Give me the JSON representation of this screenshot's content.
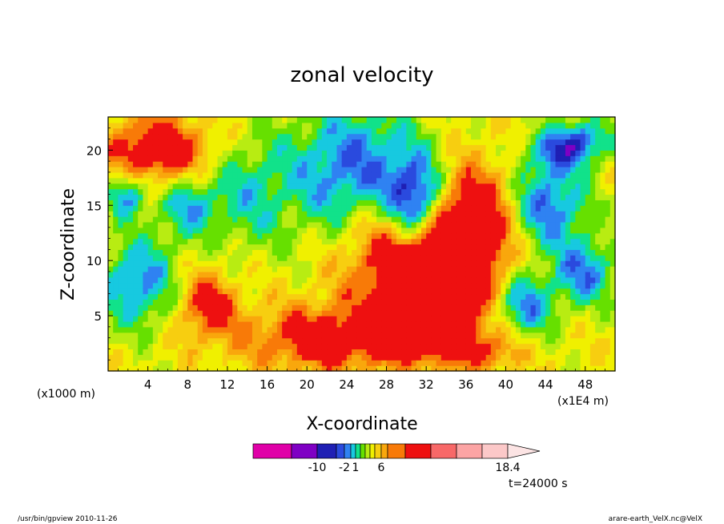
{
  "chart_data": {
    "type": "heatmap",
    "title": "zonal velocity",
    "xlabel": "X-coordinate",
    "ylabel": "Z-coordinate",
    "x_unit": "(x1E4 m)",
    "y_unit": "(x1000 m)",
    "xlim": [
      0,
      51
    ],
    "ylim": [
      0,
      23
    ],
    "x_ticks": [
      "4",
      "8",
      "12",
      "16",
      "20",
      "24",
      "28",
      "32",
      "36",
      "40",
      "44",
      "48"
    ],
    "x_tick_values": [
      4,
      8,
      12,
      16,
      20,
      24,
      28,
      32,
      36,
      40,
      44,
      48
    ],
    "y_ticks": [
      "5",
      "10",
      "15",
      "20"
    ],
    "y_tick_values": [
      5,
      10,
      15,
      20
    ],
    "colorbar": {
      "labels": [
        "-10",
        "-2",
        "1",
        "6",
        "18.4"
      ],
      "label_values": [
        -10,
        -2,
        1,
        6,
        18.4
      ],
      "colors": [
        "#e000a8",
        "#7f00c4",
        "#1f1fb4",
        "#2a4ade",
        "#2f82f2",
        "#17c9e0",
        "#11e28a",
        "#66e000",
        "#b8ec12",
        "#f0f000",
        "#f7ce10",
        "#f9a70c",
        "#f87a08",
        "#ee1010",
        "#f86868",
        "#fca4a4",
        "#fcc8c8",
        "#fce4e4"
      ]
    },
    "time_label": "t=24000 s",
    "note": "Field values digitized approximately as color classes over a coarse grid"
  },
  "footer": {
    "left": "/usr/bin/gpview   2010-11-26",
    "right": "arare-earth_VelX.nc@VelX"
  }
}
